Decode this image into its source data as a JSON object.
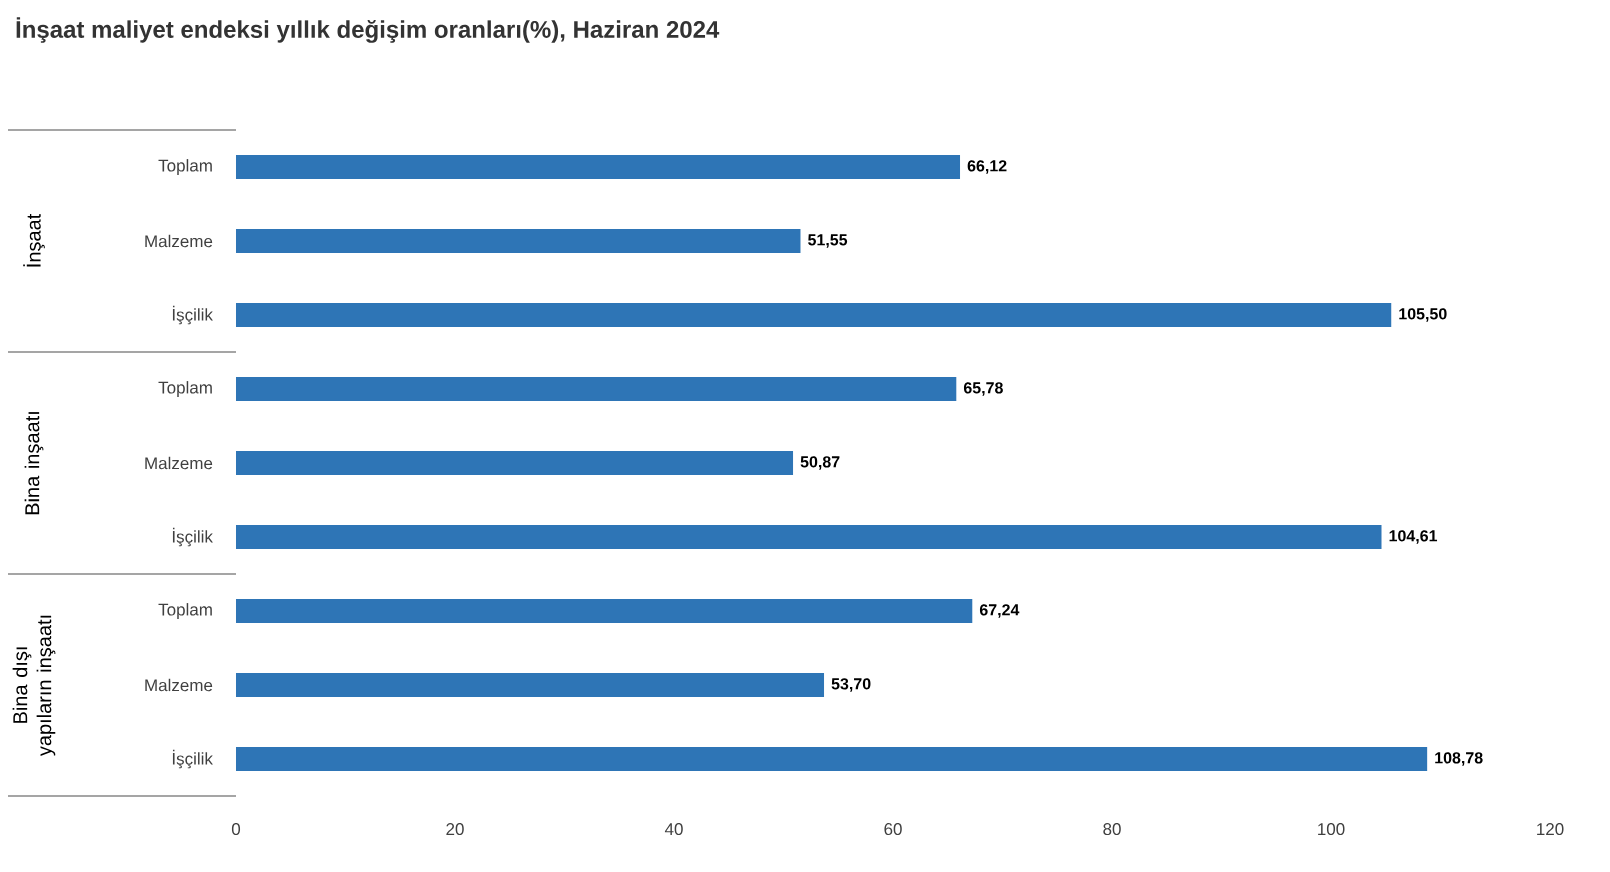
{
  "chart_data": {
    "type": "bar",
    "orientation": "horizontal",
    "title": "İnşaat maliyet endeksi yıllık değişim oranları(%), Haziran 2024",
    "categories": [
      "Toplam",
      "Malzeme",
      "İşçilik",
      "Toplam",
      "Malzeme",
      "İşçilik",
      "Toplam",
      "Malzeme",
      "İşçilik"
    ],
    "values": [
      66.12,
      51.55,
      105.5,
      65.78,
      50.87,
      104.61,
      67.24,
      53.7,
      108.78
    ],
    "value_labels": [
      "66,12",
      "51,55",
      "105,50",
      "65,78",
      "50,87",
      "104,61",
      "67,24",
      "53,70",
      "108,78"
    ],
    "color": "#2e75b6",
    "xlim": [
      0,
      120
    ],
    "xticks": [
      0,
      20,
      40,
      60,
      80,
      100,
      120
    ],
    "annotations": [
      "İnşaat",
      "Bina inşaatı",
      "Bina dışı yapıların inşaatı"
    ],
    "grid": false
  }
}
